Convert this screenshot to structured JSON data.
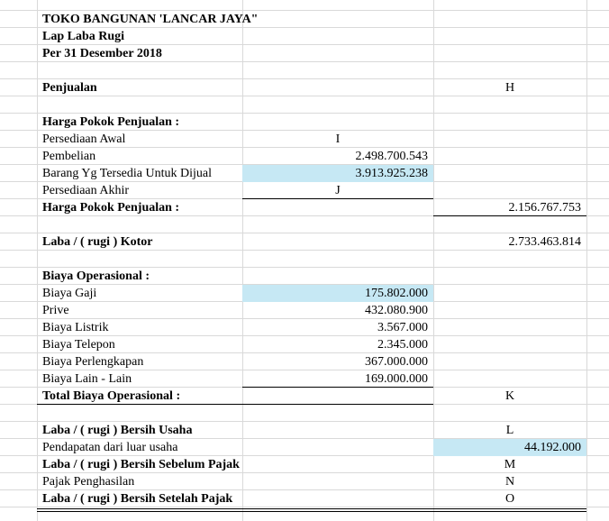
{
  "report": {
    "company": "TOKO BANGUNAN 'LANCAR JAYA\"",
    "name": "Lap Laba Rugi",
    "date": "Per 31 Desember 2018"
  },
  "colors": {
    "highlight": "#c6e8f4",
    "gridline": "#d9d9d9"
  },
  "rows": {
    "penjualan": {
      "label": "Penjualan",
      "c": "H"
    },
    "hpp_header": {
      "label": "Harga Pokok Penjualan :"
    },
    "persediaan_awal": {
      "label": "Persediaan Awal",
      "b": "I"
    },
    "pembelian": {
      "label": "Pembelian",
      "b": "2.498.700.543"
    },
    "barang_tersedia": {
      "label": "Barang Yg Tersedia Untuk Dijual",
      "b": "3.913.925.238"
    },
    "persediaan_akhir": {
      "label": "Persediaan Akhir",
      "b": "J"
    },
    "hpp_total": {
      "label": "Harga Pokok Penjualan :",
      "c": "2.156.767.753"
    },
    "laba_kotor": {
      "label": "Laba / ( rugi ) Kotor",
      "c": "2.733.463.814"
    },
    "biaya_header": {
      "label": "Biaya Operasional :"
    },
    "biaya_gaji": {
      "label": "Biaya Gaji",
      "b": "175.802.000"
    },
    "prive": {
      "label": "Prive",
      "b": "432.080.900"
    },
    "biaya_listrik": {
      "label": "Biaya Listrik",
      "b": "3.567.000"
    },
    "biaya_telepon": {
      "label": "Biaya Telepon",
      "b": "2.345.000"
    },
    "biaya_perlengkapan": {
      "label": "Biaya Perlengkapan",
      "b": "367.000.000"
    },
    "biaya_lain": {
      "label": "Biaya Lain - Lain",
      "b": "169.000.000"
    },
    "total_biaya": {
      "label": "Total Biaya Operasional :",
      "c": "K"
    },
    "laba_usaha": {
      "label": "Laba / ( rugi ) Bersih Usaha",
      "c": "L"
    },
    "pendapatan_luar": {
      "label": "Pendapatan dari luar usaha",
      "c": "44.192.000"
    },
    "laba_sebelum_pajak": {
      "label": "Laba / ( rugi ) Bersih Sebelum Pajak",
      "c": "M"
    },
    "pajak": {
      "label": "Pajak Penghasilan",
      "c": "N"
    },
    "laba_setelah_pajak": {
      "label": "Laba / ( rugi ) Bersih Setelah Pajak",
      "c": "O"
    }
  }
}
